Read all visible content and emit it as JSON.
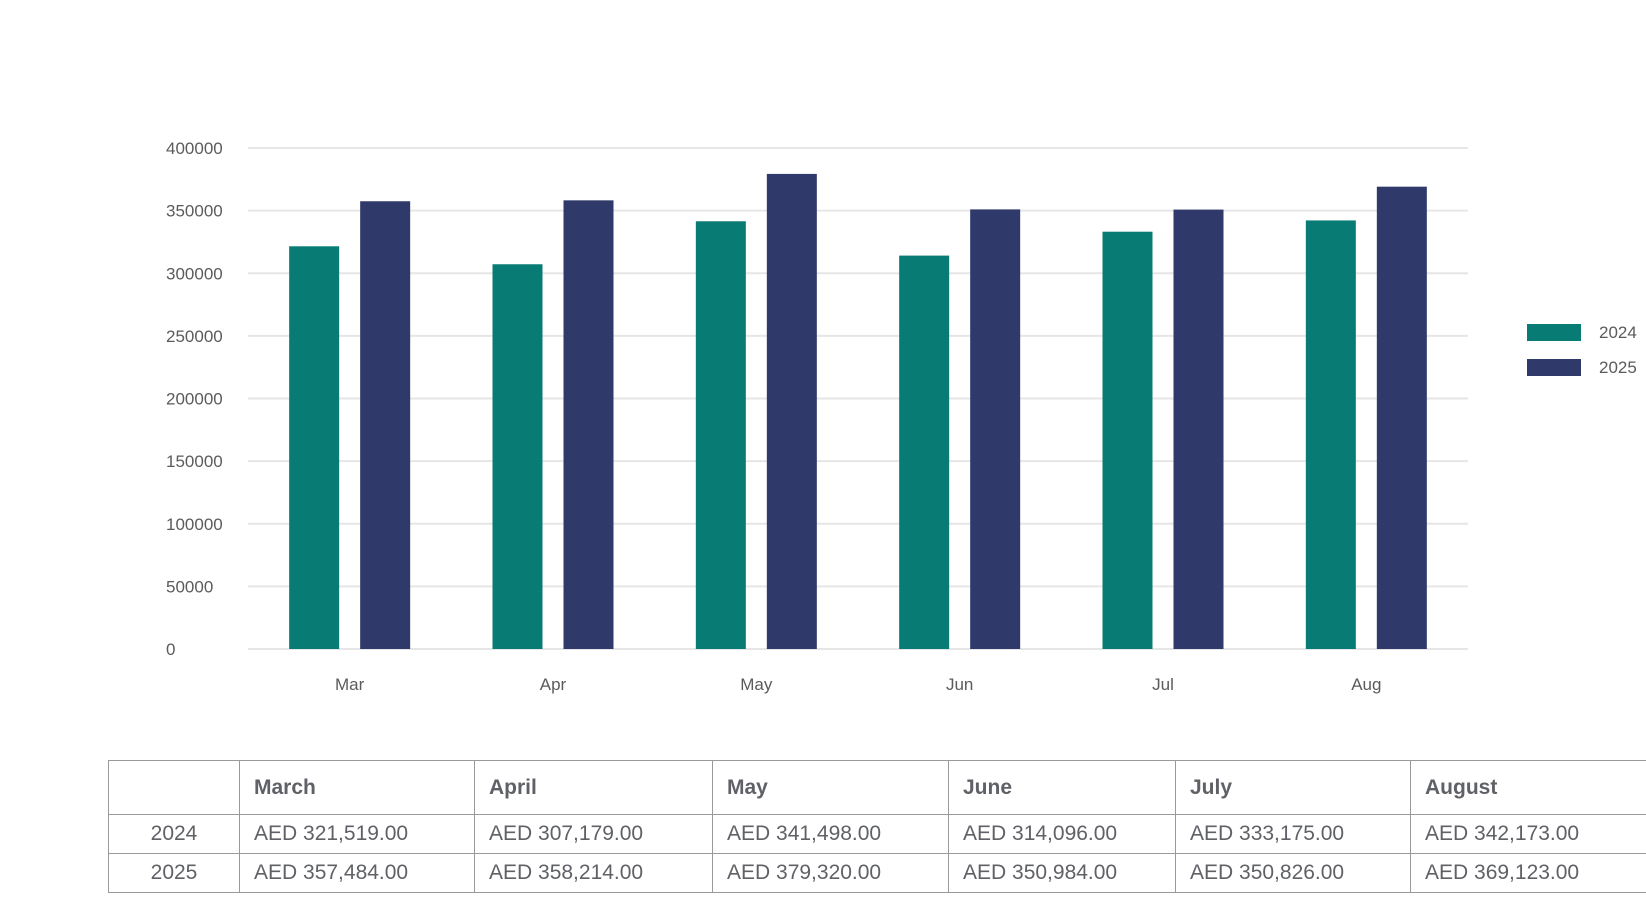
{
  "chart_data": {
    "type": "bar",
    "categories": [
      "Mar",
      "Apr",
      "May",
      "Jun",
      "Jul",
      "Aug"
    ],
    "series": [
      {
        "name": "2024",
        "color": "#077b74",
        "values": [
          321519,
          307179,
          341498,
          314096,
          333175,
          342173
        ]
      },
      {
        "name": "2025",
        "color": "#2f3a6a",
        "values": [
          357484,
          358214,
          379320,
          350984,
          350826,
          369123
        ]
      }
    ],
    "ylim": [
      0,
      400000
    ],
    "yticks": [
      "0",
      "50000",
      "100000",
      "150000",
      "200000",
      "250000",
      "300000",
      "350000",
      "400000"
    ],
    "grid": true,
    "legend_position": "right"
  },
  "table": {
    "headers": [
      "",
      "March",
      "April",
      "May",
      "June",
      "July",
      "August"
    ],
    "rows": [
      {
        "year": "2024",
        "cells": [
          "AED 321,519.00",
          "AED 307,179.00",
          "AED 341,498.00",
          "AED 314,096.00",
          "AED 333,175.00",
          "AED 342,173.00"
        ]
      },
      {
        "year": "2025",
        "cells": [
          "AED 357,484.00",
          "AED 358,214.00",
          "AED 379,320.00",
          "AED 350,984.00",
          "AED 350,826.00",
          "AED 369,123.00"
        ]
      }
    ]
  }
}
